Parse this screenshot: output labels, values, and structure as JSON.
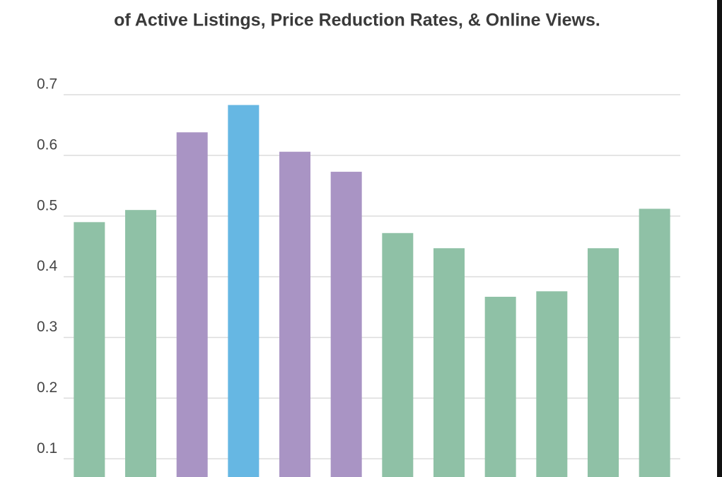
{
  "chart_data": {
    "type": "bar",
    "title": "of Active Listings, Price Reduction Rates, & Online Views.",
    "values": [
      0.49,
      0.51,
      0.638,
      0.683,
      0.606,
      0.573,
      0.472,
      0.447,
      0.367,
      0.376,
      0.447,
      0.512
    ],
    "colors": [
      "#8fc1a6",
      "#8fc1a6",
      "#a994c4",
      "#66b7e3",
      "#a994c4",
      "#a994c4",
      "#8fc1a6",
      "#8fc1a6",
      "#8fc1a6",
      "#8fc1a6",
      "#8fc1a6",
      "#8fc1a6"
    ],
    "ylim": [
      0.07,
      0.7
    ],
    "yticks": [
      0.1,
      0.2,
      0.3,
      0.4,
      0.5,
      0.6,
      0.7
    ],
    "grid": true
  }
}
